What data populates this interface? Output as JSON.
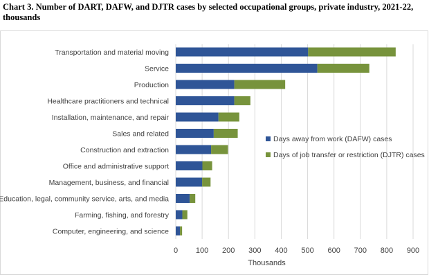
{
  "chart_data": {
    "type": "bar",
    "orientation": "horizontal",
    "stacked": true,
    "title": "Chart 3. Number of DART, DAFW, and DJTR cases by selected occupational groups, private industry, 2021-22, thousands",
    "xlabel": "Thousands",
    "xlim": [
      0,
      900
    ],
    "xticks": [
      0,
      100,
      200,
      300,
      400,
      500,
      600,
      700,
      800,
      900
    ],
    "grid": true,
    "legend_placement": "right",
    "categories": [
      "Transportation and material moving",
      "Service",
      "Production",
      "Healthcare practitioners and technical",
      "Installation, maintenance, and repair",
      "Sales and related",
      "Construction and extraction",
      "Office and administrative support",
      "Management, business, and financial",
      "Education, legal, community service, arts, and media",
      "Farming, fishing, and forestry",
      "Computer, engineering, and science"
    ],
    "series": [
      {
        "name": "Days away from work (DAFW) cases",
        "color": "#2f5597",
        "values": [
          502,
          537,
          222,
          222,
          162,
          144,
          134,
          101,
          100,
          53,
          25,
          16
        ]
      },
      {
        "name": "Days of job transfer or restriction (DJTR) cases",
        "color": "#77933c",
        "values": [
          332,
          197,
          193,
          61,
          79,
          91,
          64,
          37,
          32,
          21,
          19,
          8
        ]
      }
    ]
  }
}
